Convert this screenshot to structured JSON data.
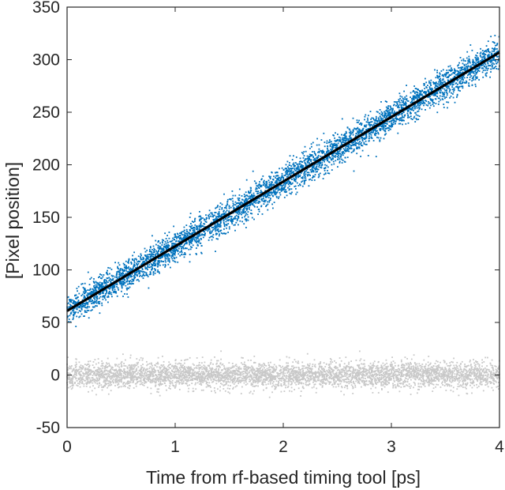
{
  "chart_data": {
    "type": "scatter",
    "xlabel": "Time from rf-based timing tool [ps]",
    "ylabel": "[Pixel position]",
    "xlim": [
      0,
      4
    ],
    "ylim": [
      -50,
      350
    ],
    "x_ticks": [
      0,
      1,
      2,
      3,
      4
    ],
    "y_ticks": [
      -50,
      0,
      50,
      100,
      150,
      200,
      250,
      300,
      350
    ],
    "grid": false,
    "series": [
      {
        "kind": "scatter-band",
        "color": "#0072BD",
        "x_range": [
          0,
          4
        ],
        "y_at_x0": 61,
        "y_at_x4": 307,
        "spread": 12
      },
      {
        "kind": "line",
        "color": "#000000",
        "x": [
          0,
          4
        ],
        "y": [
          61,
          307
        ]
      },
      {
        "kind": "scatter-band",
        "color": "#C8C8C8",
        "x_range": [
          0,
          4
        ],
        "y_at_x0": 0,
        "y_at_x4": 0,
        "spread": 10
      }
    ]
  }
}
